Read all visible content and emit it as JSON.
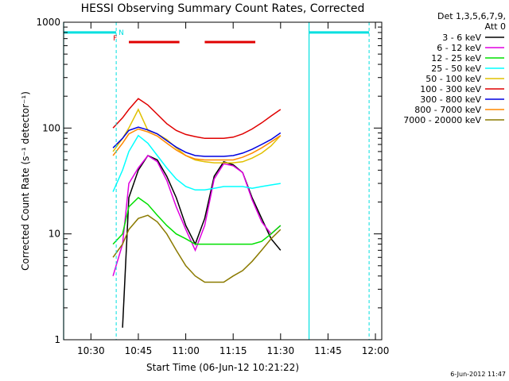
{
  "chart_data": {
    "type": "line",
    "title": "HESSI Observing Summary Count Rates, Corrected",
    "xlabel": "Start Time (06-Jun-12 10:21:22)",
    "ylabel": "Corrected Count Rate (s⁻¹ detector⁻¹)",
    "y_scale": "log",
    "xlim": [
      "10:21:22",
      "12:02"
    ],
    "ylim": [
      1,
      1000
    ],
    "x_ticks": [
      "10:30",
      "10:45",
      "11:00",
      "11:15",
      "11:30",
      "11:45",
      "12:00"
    ],
    "y_ticks": [
      "1",
      "10",
      "100",
      "1000"
    ],
    "grid": false,
    "legend_header": [
      "Det 1,3,5,6,7,9,",
      "Att 0"
    ],
    "legend_position": "right",
    "series": [
      {
        "name": "3 - 6 keV",
        "color": "#000000",
        "x": [
          "10:40",
          "10:42",
          "10:45",
          "10:48",
          "10:51",
          "10:54",
          "10:57",
          "11:00",
          "11:03",
          "11:06",
          "11:09",
          "11:12",
          "11:15",
          "11:18",
          "11:21",
          "11:24",
          "11:27",
          "11:30"
        ],
        "y": [
          1.3,
          22,
          40,
          55,
          50,
          35,
          22,
          12,
          8,
          14,
          35,
          48,
          45,
          38,
          22,
          14,
          9,
          7
        ]
      },
      {
        "name": "6 - 12 keV",
        "color": "#e000e0",
        "x": [
          "10:37",
          "10:40",
          "10:42",
          "10:45",
          "10:48",
          "10:51",
          "10:54",
          "10:57",
          "11:00",
          "11:03",
          "11:06",
          "11:09",
          "11:12",
          "11:15",
          "11:18",
          "11:21",
          "11:24",
          "11:27",
          "11:30"
        ],
        "y": [
          4,
          8,
          30,
          42,
          55,
          48,
          32,
          18,
          11,
          7,
          12,
          33,
          46,
          44,
          38,
          21,
          13,
          10,
          12
        ]
      },
      {
        "name": "12 - 25 keV",
        "color": "#00e000",
        "x": [
          "10:37",
          "10:40",
          "10:42",
          "10:45",
          "10:48",
          "10:51",
          "10:54",
          "10:57",
          "11:00",
          "11:03",
          "11:06",
          "11:09",
          "11:12",
          "11:15",
          "11:18",
          "11:21",
          "11:24",
          "11:27",
          "11:30"
        ],
        "y": [
          8,
          10,
          18,
          22,
          19,
          15,
          12,
          10,
          9,
          8,
          8,
          8,
          8,
          8,
          8,
          8,
          8.5,
          10,
          12
        ]
      },
      {
        "name": "25 - 50 keV",
        "color": "#00ffff",
        "x": [
          "10:37",
          "10:40",
          "10:42",
          "10:45",
          "10:48",
          "10:51",
          "10:54",
          "10:57",
          "11:00",
          "11:03",
          "11:06",
          "11:09",
          "11:12",
          "11:15",
          "11:18",
          "11:21",
          "11:24",
          "11:27",
          "11:30"
        ],
        "y": [
          25,
          40,
          60,
          85,
          72,
          55,
          42,
          33,
          28,
          26,
          26,
          27,
          28,
          28,
          28,
          27,
          28,
          29,
          30
        ]
      },
      {
        "name": "50 - 100 keV",
        "color": "#e0c000",
        "x": [
          "10:37",
          "10:40",
          "10:42",
          "10:45",
          "10:48",
          "10:51",
          "10:54",
          "10:57",
          "11:00",
          "11:03",
          "11:06",
          "11:09",
          "11:12",
          "11:15",
          "11:18",
          "11:21",
          "11:24",
          "11:27",
          "11:30"
        ],
        "y": [
          60,
          80,
          100,
          150,
          95,
          88,
          78,
          65,
          55,
          50,
          48,
          47,
          47,
          47,
          48,
          52,
          58,
          68,
          85
        ]
      },
      {
        "name": "100 - 300 keV",
        "color": "#e00000",
        "x": [
          "10:37",
          "10:40",
          "10:42",
          "10:45",
          "10:48",
          "10:51",
          "10:54",
          "10:57",
          "11:00",
          "11:03",
          "11:06",
          "11:09",
          "11:12",
          "11:15",
          "11:18",
          "11:21",
          "11:24",
          "11:27",
          "11:30"
        ],
        "y": [
          100,
          125,
          150,
          190,
          165,
          135,
          110,
          95,
          87,
          83,
          80,
          80,
          80,
          82,
          88,
          98,
          112,
          130,
          150
        ]
      },
      {
        "name": "300 - 800 keV",
        "color": "#0000e0",
        "x": [
          "10:37",
          "10:40",
          "10:42",
          "10:45",
          "10:48",
          "10:51",
          "10:54",
          "10:57",
          "11:00",
          "11:03",
          "11:06",
          "11:09",
          "11:12",
          "11:15",
          "11:18",
          "11:21",
          "11:24",
          "11:27",
          "11:30"
        ],
        "y": [
          65,
          80,
          95,
          102,
          96,
          88,
          76,
          66,
          59,
          55,
          54,
          54,
          54,
          55,
          58,
          63,
          70,
          78,
          90
        ]
      },
      {
        "name": "800 - 7000 keV",
        "color": "#ff8800",
        "x": [
          "10:37",
          "10:40",
          "10:42",
          "10:45",
          "10:48",
          "10:51",
          "10:54",
          "10:57",
          "11:00",
          "11:03",
          "11:06",
          "11:09",
          "11:12",
          "11:15",
          "11:18",
          "11:21",
          "11:24",
          "11:27",
          "11:30"
        ],
        "y": [
          55,
          72,
          88,
          98,
          92,
          84,
          72,
          62,
          55,
          51,
          50,
          50,
          50,
          50,
          53,
          58,
          65,
          74,
          85
        ]
      },
      {
        "name": "7000 - 20000 keV",
        "color": "#8b7a00",
        "x": [
          "10:37",
          "10:40",
          "10:42",
          "10:45",
          "10:48",
          "10:51",
          "10:54",
          "10:57",
          "11:00",
          "11:03",
          "11:06",
          "11:09",
          "11:12",
          "11:15",
          "11:18",
          "11:21",
          "11:24",
          "11:27",
          "11:30"
        ],
        "y": [
          6,
          8,
          11,
          14,
          15,
          13,
          10,
          7,
          5,
          4,
          3.5,
          3.5,
          3.5,
          4,
          4.5,
          5.5,
          7,
          9,
          11
        ]
      }
    ],
    "annotations": {
      "flags": [
        "N",
        "F"
      ],
      "night_intervals": [
        [
          "10:21:22",
          "10:38"
        ],
        [
          "11:39",
          "11:58"
        ]
      ],
      "night_markers": [
        "10:38",
        "11:58"
      ],
      "flare_intervals": [
        [
          "10:42",
          "10:58"
        ],
        [
          "11:06",
          "11:22"
        ]
      ],
      "night_bar_level": 800,
      "flare_bar_level": 650
    }
  },
  "colors": {
    "background": "#ffffff",
    "axes": "#000000",
    "night": "#00e0e0",
    "flare": "#e00000"
  },
  "timestamp": "6-Jun-2012 11:47"
}
